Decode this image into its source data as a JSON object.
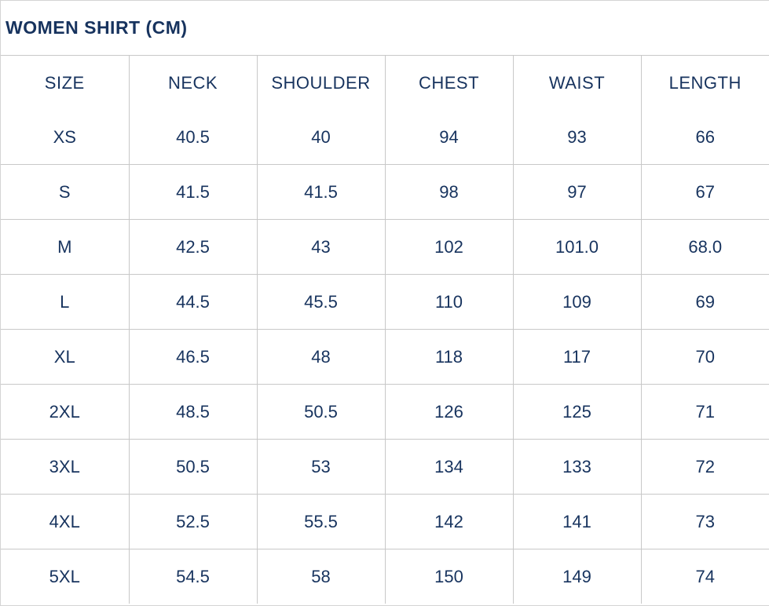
{
  "title": "WOMEN SHIRT (CM)",
  "columns": [
    "SIZE",
    "NECK",
    "SHOULDER",
    "CHEST",
    "WAIST",
    "LENGTH"
  ],
  "rows": [
    [
      "XS",
      "40.5",
      "40",
      "94",
      "93",
      "66"
    ],
    [
      "S",
      "41.5",
      "41.5",
      "98",
      "97",
      "67"
    ],
    [
      "M",
      "42.5",
      "43",
      "102",
      "101.0",
      "68.0"
    ],
    [
      "L",
      "44.5",
      "45.5",
      "110",
      "109",
      "69"
    ],
    [
      "XL",
      "46.5",
      "48",
      "118",
      "117",
      "70"
    ],
    [
      "2XL",
      "48.5",
      "50.5",
      "126",
      "125",
      "71"
    ],
    [
      "3XL",
      "50.5",
      "53",
      "134",
      "133",
      "72"
    ],
    [
      "4XL",
      "52.5",
      "55.5",
      "142",
      "141",
      "73"
    ],
    [
      "5XL",
      "54.5",
      "58",
      "150",
      "149",
      "74"
    ]
  ],
  "colors": {
    "text": "#17335e",
    "border": "#c8c8c8"
  }
}
